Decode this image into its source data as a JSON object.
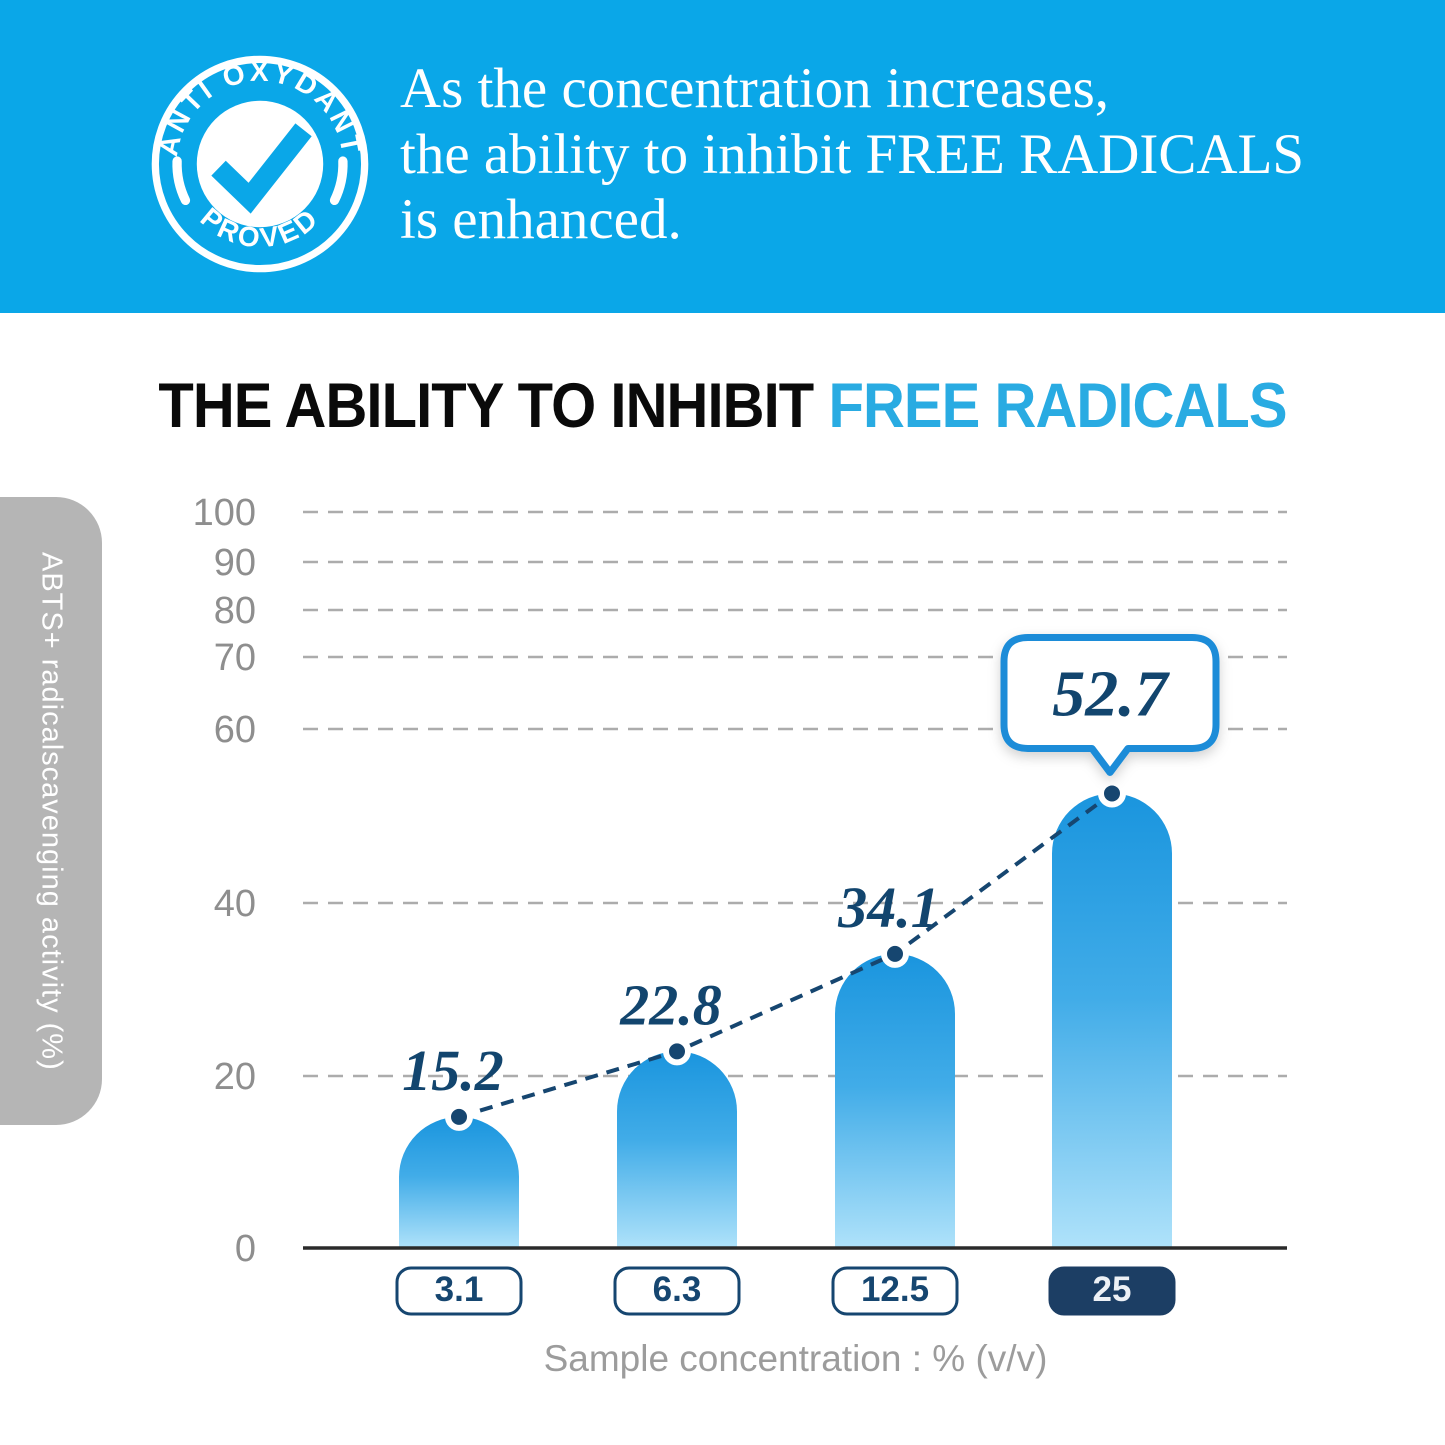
{
  "banner": {
    "badge": {
      "top_text": "ANTI OXYDANT",
      "bottom_text": "PROVED"
    },
    "lines": [
      "As the concentration increases,",
      "the ability to inhibit FREE RADICALS",
      "is enhanced."
    ]
  },
  "title": {
    "black_part": "THE ABILITY TO INHIBIT ",
    "blue_part": "FREE RADICALS"
  },
  "chart_data": {
    "type": "bar",
    "categories": [
      "3.1",
      "6.3",
      "12.5",
      "25"
    ],
    "values": [
      15.2,
      22.8,
      34.1,
      52.7
    ],
    "title": "THE ABILITY TO INHIBIT FREE RADICALS",
    "xlabel": "Sample concentration : % (v/v)",
    "ylabel": "ABTS+ radicalscavenging activity (%)",
    "yticks": [
      0,
      20,
      40,
      60,
      70,
      80,
      90,
      100
    ],
    "ylim": [
      0,
      100
    ],
    "grid": true,
    "legend": false,
    "highlight_index": 3,
    "overlay": "dashed line with dots connecting bar tops",
    "callout_value": "52.7"
  },
  "colors": {
    "azure": "#0AA7E8",
    "title_blue": "#29ABE2",
    "navy": "#164670",
    "value_navy": "#12456E",
    "gridline": "#ACACAC",
    "tick": "#8E8E8E",
    "sidebar_gray": "#B5B5B5",
    "axis": "#2A2A2A",
    "bubble_border": "#1B8CD8",
    "caption_gray": "#9C9C9C",
    "bar_top": "#1A95DE",
    "bar_mid": "#41ACE8",
    "bar_bottom": "#AFE2FA",
    "pill_highlight_fill": "#1C3E64",
    "pill_highlight_text": "#EDF1F6"
  }
}
